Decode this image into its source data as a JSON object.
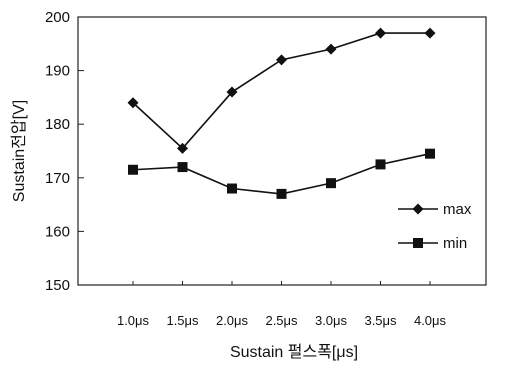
{
  "chart_data": {
    "type": "line",
    "categories": [
      "1.0μs",
      "1.5μs",
      "2.0μs",
      "2.5μs",
      "3.0μs",
      "3.5μs",
      "4.0μs"
    ],
    "series": [
      {
        "name": "max",
        "marker": "diamond",
        "values": [
          184,
          175.5,
          186,
          192,
          194,
          197,
          197
        ]
      },
      {
        "name": "min",
        "marker": "square",
        "values": [
          171.5,
          172,
          168,
          167,
          169,
          172.5,
          174.5
        ]
      }
    ],
    "title": "",
    "xlabel": "Sustain 펄스폭[μs]",
    "ylabel": "Sustain전압[V]",
    "ylim": [
      150,
      200
    ],
    "yticks": [
      "150",
      "160",
      "170",
      "180",
      "190",
      "200"
    ],
    "grid": false,
    "legend_position": "right",
    "line_color": "#111111"
  }
}
